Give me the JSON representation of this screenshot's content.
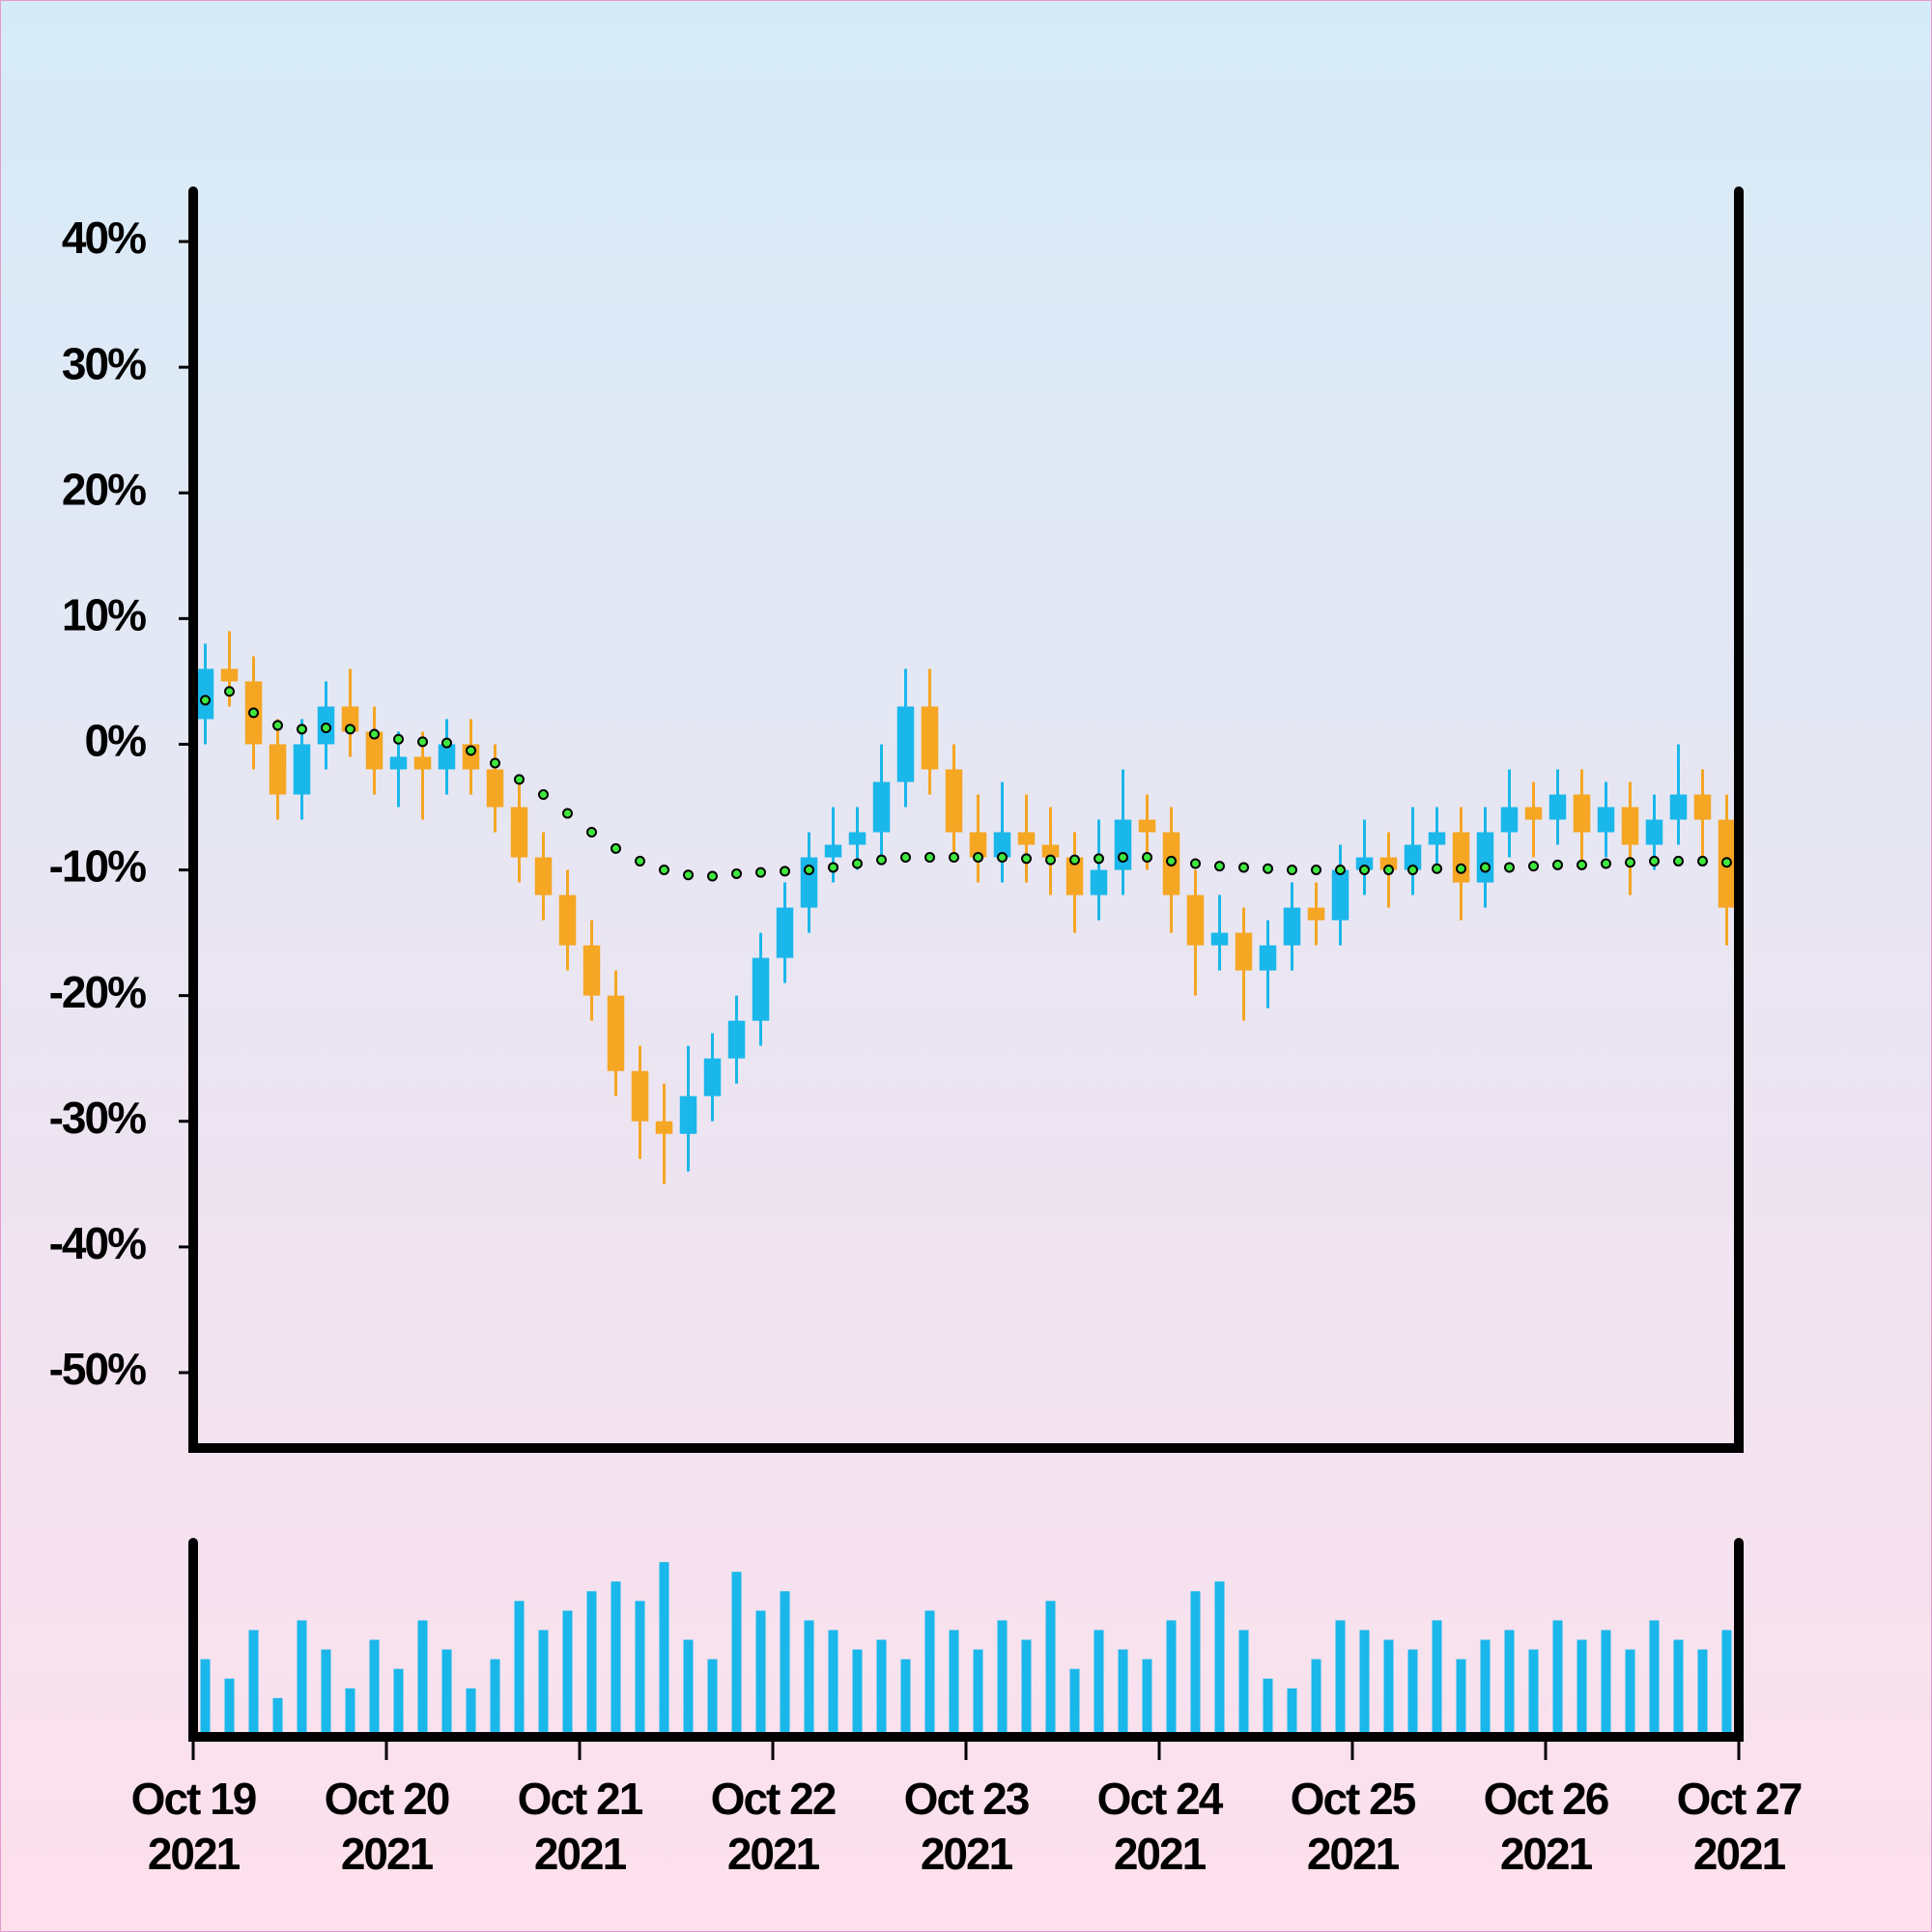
{
  "chart_data": [
    {
      "type": "candlestick",
      "x": [
        "2021-10-19T00:00",
        "2021-10-19T03:00",
        "2021-10-19T06:00",
        "2021-10-19T09:00",
        "2021-10-19T12:00",
        "2021-10-19T15:00",
        "2021-10-19T18:00",
        "2021-10-19T21:00",
        "2021-10-20T00:00",
        "2021-10-20T03:00",
        "2021-10-20T06:00",
        "2021-10-20T09:00",
        "2021-10-20T12:00",
        "2021-10-20T15:00",
        "2021-10-20T18:00",
        "2021-10-20T21:00",
        "2021-10-21T00:00",
        "2021-10-21T03:00",
        "2021-10-21T06:00",
        "2021-10-21T09:00",
        "2021-10-21T12:00",
        "2021-10-21T15:00",
        "2021-10-21T18:00",
        "2021-10-21T21:00",
        "2021-10-22T00:00",
        "2021-10-22T03:00",
        "2021-10-22T06:00",
        "2021-10-22T09:00",
        "2021-10-22T12:00",
        "2021-10-22T15:00",
        "2021-10-22T18:00",
        "2021-10-22T21:00",
        "2021-10-23T00:00",
        "2021-10-23T03:00",
        "2021-10-23T06:00",
        "2021-10-23T09:00",
        "2021-10-23T12:00",
        "2021-10-23T15:00",
        "2021-10-23T18:00",
        "2021-10-23T21:00",
        "2021-10-24T00:00",
        "2021-10-24T03:00",
        "2021-10-24T06:00",
        "2021-10-24T09:00",
        "2021-10-24T12:00",
        "2021-10-24T15:00",
        "2021-10-24T18:00",
        "2021-10-24T21:00",
        "2021-10-25T00:00",
        "2021-10-25T03:00",
        "2021-10-25T06:00",
        "2021-10-25T09:00",
        "2021-10-25T12:00",
        "2021-10-25T15:00",
        "2021-10-25T18:00",
        "2021-10-25T21:00",
        "2021-10-26T00:00",
        "2021-10-26T03:00",
        "2021-10-26T06:00",
        "2021-10-26T09:00",
        "2021-10-26T12:00",
        "2021-10-26T15:00",
        "2021-10-26T18:00",
        "2021-10-26T21:00"
      ],
      "open": [
        2,
        6,
        5,
        0,
        -4,
        0,
        3,
        1,
        -2,
        -1,
        -2,
        0,
        -2,
        -5,
        -9,
        -12,
        -16,
        -20,
        -26,
        -30,
        -31,
        -28,
        -25,
        -22,
        -17,
        -13,
        -9,
        -8,
        -7,
        -3,
        3,
        -2,
        -7,
        -9,
        -7,
        -8,
        -9,
        -12,
        -10,
        -6,
        -7,
        -12,
        -16,
        -15,
        -18,
        -16,
        -13,
        -14,
        -10,
        -9,
        -10,
        -8,
        -7,
        -11,
        -7,
        -5,
        -6,
        -4,
        -7,
        -5,
        -8,
        -6,
        -4,
        -6
      ],
      "high": [
        8,
        9,
        7,
        2,
        2,
        5,
        6,
        3,
        1,
        1,
        2,
        2,
        0,
        -3,
        -7,
        -10,
        -14,
        -18,
        -24,
        -27,
        -24,
        -23,
        -20,
        -15,
        -11,
        -7,
        -5,
        -5,
        0,
        6,
        6,
        0,
        -4,
        -3,
        -4,
        -5,
        -7,
        -6,
        -2,
        -4,
        -5,
        -10,
        -12,
        -13,
        -14,
        -11,
        -11,
        -8,
        -6,
        -7,
        -5,
        -5,
        -5,
        -5,
        -2,
        -3,
        -2,
        -2,
        -3,
        -3,
        -4,
        0,
        -2,
        -4
      ],
      "low": [
        0,
        3,
        -2,
        -6,
        -6,
        -2,
        -1,
        -4,
        -5,
        -6,
        -4,
        -4,
        -7,
        -11,
        -14,
        -18,
        -22,
        -28,
        -33,
        -35,
        -34,
        -30,
        -27,
        -24,
        -19,
        -15,
        -11,
        -10,
        -9,
        -5,
        -4,
        -9,
        -11,
        -11,
        -11,
        -12,
        -15,
        -14,
        -12,
        -10,
        -15,
        -20,
        -18,
        -22,
        -21,
        -18,
        -16,
        -16,
        -12,
        -13,
        -12,
        -10,
        -14,
        -13,
        -9,
        -9,
        -8,
        -10,
        -9,
        -12,
        -10,
        -8,
        -9,
        -16
      ],
      "close": [
        6,
        5,
        0,
        -4,
        0,
        3,
        1,
        -2,
        -1,
        -2,
        0,
        -2,
        -5,
        -9,
        -12,
        -16,
        -20,
        -26,
        -30,
        -31,
        -28,
        -25,
        -22,
        -17,
        -13,
        -9,
        -8,
        -7,
        -3,
        3,
        -2,
        -7,
        -9,
        -7,
        -8,
        -9,
        -12,
        -10,
        -6,
        -7,
        -12,
        -16,
        -15,
        -18,
        -16,
        -13,
        -14,
        -10,
        -9,
        -10,
        -8,
        -7,
        -11,
        -7,
        -5,
        -6,
        -4,
        -7,
        -5,
        -8,
        -6,
        -4,
        -6,
        -13
      ],
      "up_color": "#1ab7ea",
      "down_color": "#f5a623",
      "moving_average": {
        "color": "#3ee83e",
        "values": [
          3.5,
          4.2,
          2.5,
          1.5,
          1.2,
          1.3,
          1.2,
          0.8,
          0.4,
          0.2,
          0.1,
          -0.5,
          -1.5,
          -2.8,
          -4,
          -5.5,
          -7,
          -8.3,
          -9.3,
          -10,
          -10.4,
          -10.5,
          -10.3,
          -10.2,
          -10.1,
          -10,
          -9.8,
          -9.5,
          -9.2,
          -9,
          -9,
          -9,
          -9,
          -9,
          -9.1,
          -9.2,
          -9.2,
          -9.1,
          -9,
          -9,
          -9.3,
          -9.5,
          -9.7,
          -9.8,
          -9.9,
          -10,
          -10,
          -10,
          -10,
          -10,
          -10,
          -9.9,
          -9.9,
          -9.8,
          -9.8,
          -9.7,
          -9.6,
          -9.6,
          -9.5,
          -9.4,
          -9.3,
          -9.3,
          -9.3,
          -9.4
        ]
      },
      "xlim": [
        "2021-10-19",
        "2021-10-27"
      ],
      "ylim": [
        -56,
        44
      ],
      "yticks": [
        {
          "value": 40,
          "label": "40%"
        },
        {
          "value": 30,
          "label": "30%"
        },
        {
          "value": 20,
          "label": "20%"
        },
        {
          "value": 10,
          "label": "10%"
        },
        {
          "value": 0,
          "label": "0%"
        },
        {
          "value": -10,
          "label": "-10%"
        },
        {
          "value": -20,
          "label": "-20%"
        },
        {
          "value": -30,
          "label": "-30%"
        },
        {
          "value": -40,
          "label": "-40%"
        },
        {
          "value": -50,
          "label": "-50%"
        }
      ]
    },
    {
      "type": "bar",
      "x": [
        "2021-10-19T00:00",
        "2021-10-19T03:00",
        "2021-10-19T06:00",
        "2021-10-19T09:00",
        "2021-10-19T12:00",
        "2021-10-19T15:00",
        "2021-10-19T18:00",
        "2021-10-19T21:00",
        "2021-10-20T00:00",
        "2021-10-20T03:00",
        "2021-10-20T06:00",
        "2021-10-20T09:00",
        "2021-10-20T12:00",
        "2021-10-20T15:00",
        "2021-10-20T18:00",
        "2021-10-20T21:00",
        "2021-10-21T00:00",
        "2021-10-21T03:00",
        "2021-10-21T06:00",
        "2021-10-21T09:00",
        "2021-10-21T12:00",
        "2021-10-21T15:00",
        "2021-10-21T18:00",
        "2021-10-21T21:00",
        "2021-10-22T00:00",
        "2021-10-22T03:00",
        "2021-10-22T06:00",
        "2021-10-22T09:00",
        "2021-10-22T12:00",
        "2021-10-22T15:00",
        "2021-10-22T18:00",
        "2021-10-22T21:00",
        "2021-10-23T00:00",
        "2021-10-23T03:00",
        "2021-10-23T06:00",
        "2021-10-23T09:00",
        "2021-10-23T12:00",
        "2021-10-23T15:00",
        "2021-10-23T18:00",
        "2021-10-23T21:00",
        "2021-10-24T00:00",
        "2021-10-24T03:00",
        "2021-10-24T06:00",
        "2021-10-24T09:00",
        "2021-10-24T12:00",
        "2021-10-24T15:00",
        "2021-10-24T18:00",
        "2021-10-24T21:00",
        "2021-10-25T00:00",
        "2021-10-25T03:00",
        "2021-10-25T06:00",
        "2021-10-25T09:00",
        "2021-10-25T12:00",
        "2021-10-25T15:00",
        "2021-10-25T18:00",
        "2021-10-25T21:00",
        "2021-10-26T00:00",
        "2021-10-26T03:00",
        "2021-10-26T06:00",
        "2021-10-26T09:00",
        "2021-10-26T12:00",
        "2021-10-26T15:00",
        "2021-10-26T18:00",
        "2021-10-26T21:00"
      ],
      "values": [
        40,
        30,
        55,
        20,
        60,
        45,
        25,
        50,
        35,
        60,
        45,
        25,
        40,
        70,
        55,
        65,
        75,
        80,
        70,
        90,
        50,
        40,
        85,
        65,
        75,
        60,
        55,
        45,
        50,
        40,
        65,
        55,
        45,
        60,
        50,
        70,
        35,
        55,
        45,
        40,
        60,
        75,
        80,
        55,
        30,
        25,
        40,
        60,
        55,
        50,
        45,
        60,
        40,
        50,
        55,
        45,
        60,
        50,
        55,
        45,
        60,
        50,
        45,
        55
      ],
      "color": "#1ab7ea",
      "xlim": [
        "2021-10-19",
        "2021-10-27"
      ],
      "ylim": [
        0,
        100
      ],
      "xticks": [
        {
          "value": "2021-10-19",
          "label": [
            "Oct 19",
            "2021"
          ]
        },
        {
          "value": "2021-10-20",
          "label": [
            "Oct 20",
            "2021"
          ]
        },
        {
          "value": "2021-10-21",
          "label": [
            "Oct 21",
            "2021"
          ]
        },
        {
          "value": "2021-10-22",
          "label": [
            "Oct 22",
            "2021"
          ]
        },
        {
          "value": "2021-10-23",
          "label": [
            "Oct 23",
            "2021"
          ]
        },
        {
          "value": "2021-10-24",
          "label": [
            "Oct 24",
            "2021"
          ]
        },
        {
          "value": "2021-10-25",
          "label": [
            "Oct 25",
            "2021"
          ]
        },
        {
          "value": "2021-10-26",
          "label": [
            "Oct 26",
            "2021"
          ]
        },
        {
          "value": "2021-10-27",
          "label": [
            "Oct 27",
            "2021"
          ]
        }
      ]
    }
  ]
}
